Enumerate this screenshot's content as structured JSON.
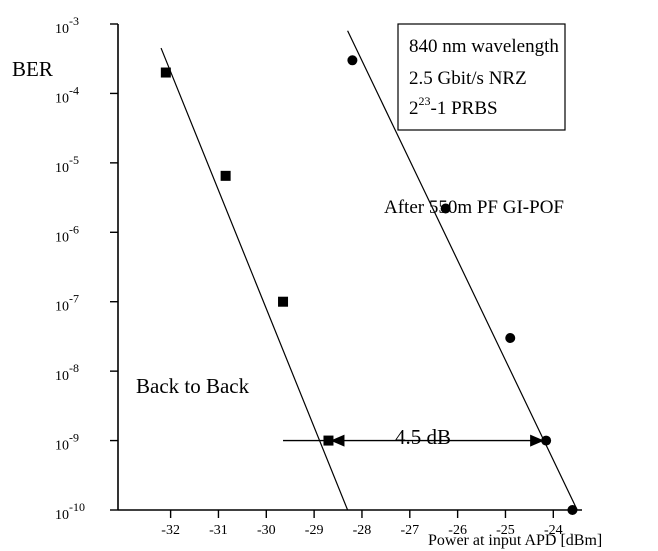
{
  "chart_data": {
    "type": "scatter",
    "ylabel": "BER",
    "xlabel": "Power at input APD [dBm]",
    "xlim": [
      -33.1,
      -23.4
    ],
    "y_scale": "log",
    "ylim": [
      1e-10,
      0.001
    ],
    "x_ticks": [
      "-32",
      "-31",
      "-30",
      "-29",
      "-28",
      "-27",
      "-26",
      "-25",
      "-24"
    ],
    "y_ticks": [
      {
        "base": "10",
        "exp": "-3"
      },
      {
        "base": "10",
        "exp": "-4"
      },
      {
        "base": "10",
        "exp": "-5"
      },
      {
        "base": "10",
        "exp": "-6"
      },
      {
        "base": "10",
        "exp": "-7"
      },
      {
        "base": "10",
        "exp": "-8"
      },
      {
        "base": "10",
        "exp": "-9"
      },
      {
        "base": "10",
        "exp": "-10"
      }
    ],
    "legend": {
      "lines": [
        {
          "text": "840 nm wavelength"
        },
        {
          "text": "2.5 Gbit/s NRZ"
        },
        {
          "pre": "2",
          "sup": "23",
          "post": "-1 PRBS"
        }
      ]
    },
    "series": [
      {
        "name": "Back to Back",
        "marker": "square",
        "points": [
          {
            "x": -32.1,
            "y": 0.0002
          },
          {
            "x": -30.85,
            "y": 6.5e-06
          },
          {
            "x": -29.65,
            "y": 1e-07
          },
          {
            "x": -28.7,
            "y": 1e-09
          }
        ],
        "fit_line": [
          {
            "x": -32.2,
            "y": 0.00045
          },
          {
            "x": -28.3,
            "y": 1e-10
          }
        ]
      },
      {
        "name": "After 550m PF GI-POF",
        "marker": "circle",
        "points": [
          {
            "x": -28.2,
            "y": 0.0003
          },
          {
            "x": -26.25,
            "y": 2.2e-06
          },
          {
            "x": -24.9,
            "y": 3e-08
          },
          {
            "x": -24.15,
            "y": 1e-09
          },
          {
            "x": -23.6,
            "y": 1e-10
          }
        ],
        "fit_line": [
          {
            "x": -28.3,
            "y": 0.0008
          },
          {
            "x": -23.5,
            "y": 1e-10
          }
        ]
      }
    ],
    "annotations": {
      "penalty_label": "4.5 dB",
      "penalty_from_x": -28.7,
      "penalty_to_x": -24.15,
      "penalty_y": 1e-09,
      "penalty_line_start_x": -29.65
    }
  }
}
